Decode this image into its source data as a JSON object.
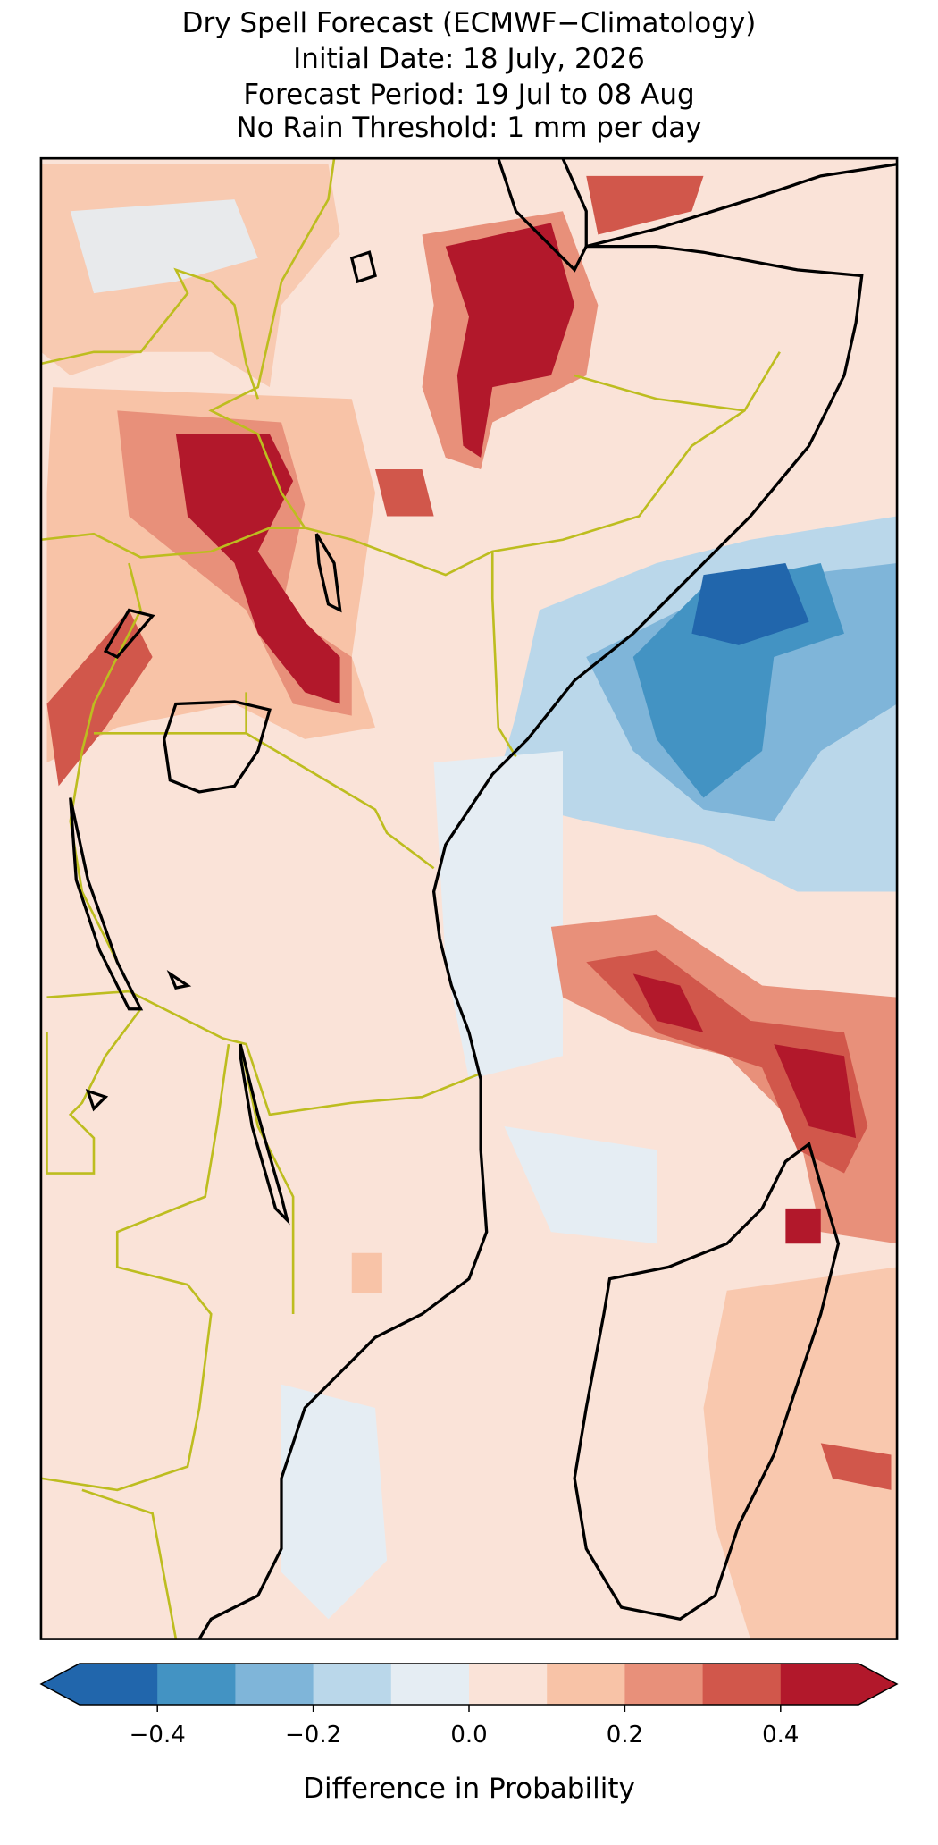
{
  "chart_data": {
    "type": "map",
    "title": [
      "Dry Spell Forecast (ECMWF−Climatology)",
      "Initial Date: 18 July, 2026",
      "Forecast Period: 19 Jul to 08 Aug",
      "No Rain Threshold: 1 mm per day"
    ],
    "colorbar": {
      "label": "Difference in Probability",
      "levels": [
        -0.5,
        -0.4,
        -0.3,
        -0.2,
        -0.1,
        0,
        0.1,
        0.2,
        0.3,
        0.4,
        0.5
      ],
      "colors": [
        "#2166ac",
        "#4393c3",
        "#7fb5d9",
        "#bad7ea",
        "#e5edf3",
        "#fae3d8",
        "#f8c3a7",
        "#e8907a",
        "#d1574b",
        "#b2182b"
      ],
      "extend": "both",
      "ticks": [
        {
          "value": -0.4,
          "label": "−0.4"
        },
        {
          "value": -0.2,
          "label": "−0.2"
        },
        {
          "value": 0,
          "label": "0.0"
        },
        0.2,
        0.4
      ]
    }
  }
}
